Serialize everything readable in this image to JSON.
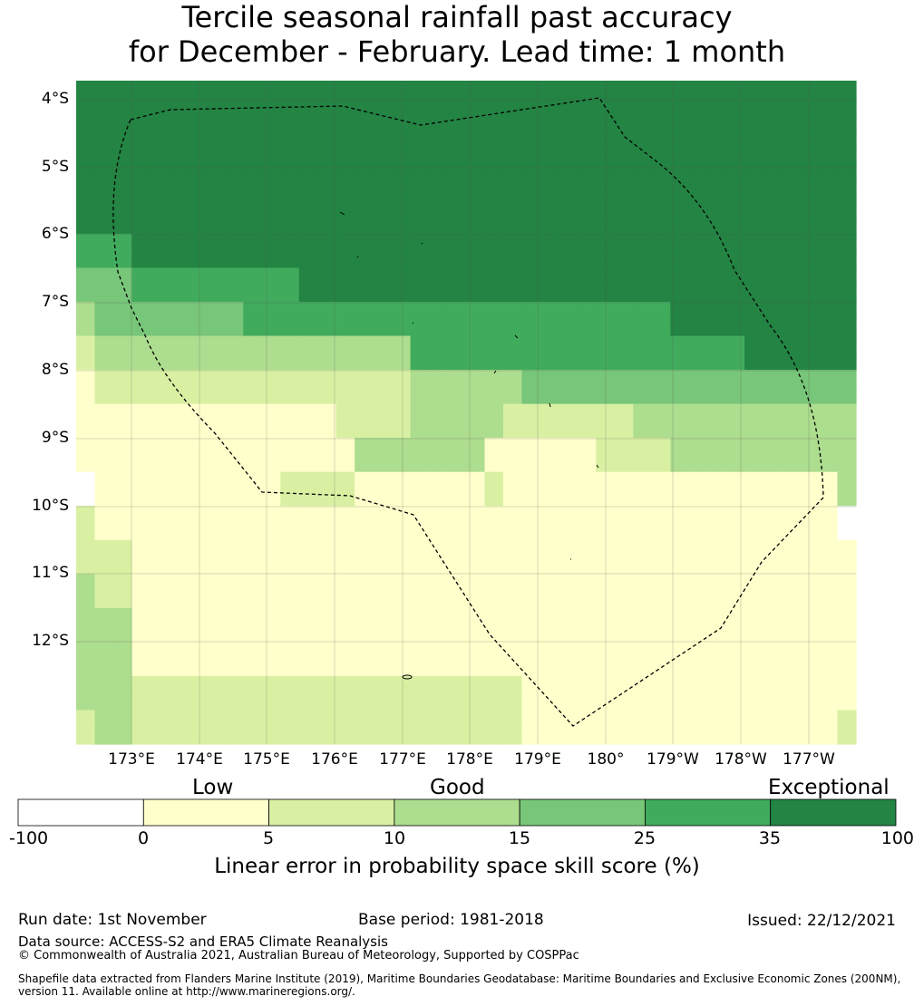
{
  "title": {
    "line1": "Tercile seasonal rainfall past accuracy",
    "line2": "for December - February. Lead time: 1 month"
  },
  "map": {
    "lat_ticks": [
      "4°S",
      "5°S",
      "6°S",
      "7°S",
      "8°S",
      "9°S",
      "10°S",
      "11°S",
      "12°S"
    ],
    "lon_ticks": [
      "173°E",
      "174°E",
      "175°E",
      "176°E",
      "177°E",
      "178°E",
      "179°E",
      "180°",
      "179°W",
      "178°W",
      "177°W"
    ],
    "legend_classes": [
      {
        "range": "-100 to 0",
        "color": "#ffffff"
      },
      {
        "range": "0 to 5",
        "color": "#ffffcc"
      },
      {
        "range": "5 to 10",
        "color": "#d9f0a3"
      },
      {
        "range": "10 to 15",
        "color": "#addd8e"
      },
      {
        "range": "15 to 25",
        "color": "#78c679"
      },
      {
        "range": "25 to 35",
        "color": "#41ab5d"
      },
      {
        "range": "35 to 100",
        "color": "#238443"
      }
    ],
    "skill_class_grid": [
      "666666666666666666666666666666666666666666",
      "666666666666666666666666666666666666666666",
      "666666666666666666666666666666666666666666",
      "666666666666666666666666666666666666666666",
      "666666666666666666666666666666666666666666",
      "666666666666666666666666666666666666666666",
      "666666666666666666666666666666666666666666",
      "666666666666666666666666666666666666666666",
      "666666666666666666666666666666666666666666",
      "555666666666666666666666666666666666666666",
      "555666666666666666666666666666666666666666",
      "444555555555666666666666666666666666666666",
      "444555555555666666666666666666666666666666",
      "344444444555555555555555555555556666666666",
      "344444444555555555555555555555556666666666",
      "233333333333333333555555555555555555666666",
      "233333333333333333555555555555555555666666",
      "122222222222222222333333444444444444444444",
      "122222222222222222333333444444444444444444",
      "111111111111112222333332222222333333333333",
      "111111111111112222333332222222333333333333",
      "111111111111111333333311111122223333333333",
      "111111111111111333333311111122223333333333",
      "011111111112222111111121111111111111111113",
      "011111111112222111111121111111111111111113",
      "211111111111111111111111111111111111111110",
      "211111111111111111111111111111111111111110",
      "222111111111111111111111111111111111111111",
      "222111111111111111111111111111111111111111",
      "322111111111111111111111111111111111111111",
      "322111111111111111111111111111111111111111",
      "333111111111111111111111111111111111111111",
      "333111111111111111111111111111111111111111",
      "333111111111111111111111111111111111111111",
      "333111111111111111111111111111111111111111",
      "333222222222222222222222111111111111111111",
      "333222222222222222222222111111111111111111",
      "233222222222222222222222111111111111111112",
      "233222222222222222222222111111111111111112"
    ]
  },
  "colorbar": {
    "categories": [
      "Low",
      "Good",
      "Exceptional"
    ],
    "ticks": [
      "-100",
      "0",
      "5",
      "10",
      "15",
      "25",
      "35",
      "100"
    ],
    "colors": [
      "#ffffff",
      "#ffffcc",
      "#d9f0a3",
      "#addd8e",
      "#78c679",
      "#41ab5d",
      "#238443"
    ],
    "label": "Linear error in probability space skill score (%)"
  },
  "footer": {
    "run_date": "Run date: 1st November",
    "base_period": "Base period: 1981-2018",
    "issued": "Issued: 22/12/2021",
    "data_source": "Data source: ACCESS-S2 and ERA5 Climate Reanalysis",
    "copyright": "© Commonwealth of Australia 2021, Australian Bureau of Meteorology, Supported by COSPPac",
    "shapefile_line1": "Shapefile data extracted from Flanders Marine Institute (2019), Maritime Boundaries Geodatabase: Maritime Boundaries and Exclusive Economic Zones (200NM),",
    "shapefile_line2": "version 11. Available online at http://www.marineregions.org/."
  }
}
